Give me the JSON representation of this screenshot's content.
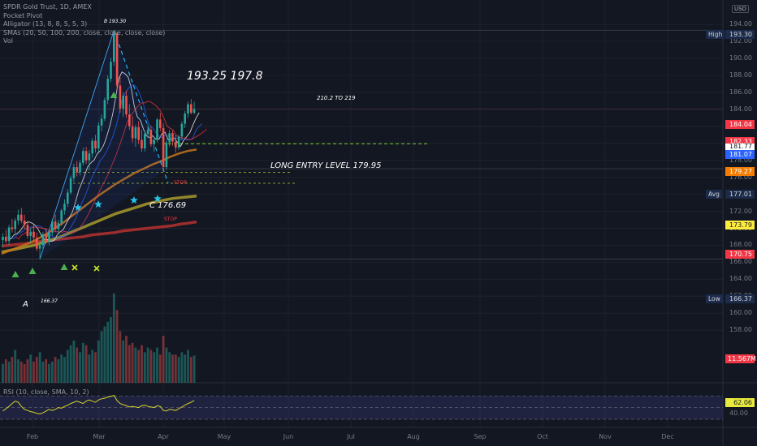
{
  "legend": {
    "title": "SPDR Gold Trust, 1D, AMEX",
    "line2": "Pocket Pivot",
    "line3": "Alligator (13, 8, 8, 5, 5, 3)",
    "line4": "SMAs (20, 50, 100, 200, close, close, close, close)",
    "line5": "Vol"
  },
  "rsi_legend": "RSI (10, close, SMA, 10, 2)",
  "currency": "USD",
  "y_axis": {
    "ticks": [
      "194.00",
      "192.00",
      "190.00",
      "188.00",
      "186.00",
      "184.00",
      "182.00",
      "180.00",
      "178.00",
      "176.00",
      "174.00",
      "172.00",
      "170.00",
      "168.00",
      "166.00",
      "164.00",
      "162.00",
      "160.00",
      "158.00"
    ],
    "rsi_ticks": [
      "40.00",
      "60.00"
    ]
  },
  "x_axis": {
    "ticks": [
      "Feb",
      "Mar",
      "Apr",
      "May",
      "Jun",
      "Jul",
      "Aug",
      "Sep",
      "Oct",
      "Nov",
      "Dec"
    ]
  },
  "price_labels": {
    "high_tag": "High",
    "high": "193.30",
    "last": "184.04",
    "red2": "182.33",
    "white": "181.77",
    "blue": "181.07",
    "orange": "179.27",
    "avg_tag": "Avg",
    "avg": "177.01",
    "yellow": "173.79",
    "red": "170.75",
    "low_tag": "Low",
    "low": "166.37",
    "vol": "11.567M",
    "rsi": "62.06"
  },
  "annotations": {
    "peak": "B 193.30",
    "targets": "193.25  197.8",
    "target2": "210.2 TO 219",
    "entry": "LONG ENTRY LEVEL 179.95",
    "c_point": "C 176.69",
    "a_point": "A",
    "a_value": "166.37",
    "stop": "STOP",
    "stop2": "STOP"
  },
  "colors": {
    "background": "#131722",
    "up": "#26a69a",
    "down": "#ef5350",
    "sma_red": "#b7312f",
    "sma_yellow": "#a89a2c",
    "sma_orange": "#c8761a",
    "rsi_line": "#d5d32a",
    "rsi_band": "#2a2e5a",
    "entry_line": "#7ccd2a",
    "stars": "#27c4e8",
    "triangles": "#4caf50"
  },
  "chart_data": {
    "type": "candlestick",
    "ylim": [
      157.5,
      195.6
    ],
    "levels": {
      "high": 193.3,
      "last": 184.04,
      "avg": 177.01,
      "low": 166.37,
      "entry": 179.95,
      "c": 176.69
    },
    "candles": [
      [
        168.6,
        169.4,
        167.8,
        169.0
      ],
      [
        169.0,
        169.8,
        168.2,
        168.5
      ],
      [
        168.5,
        170.4,
        168.0,
        170.1
      ],
      [
        170.1,
        171.1,
        169.5,
        169.9
      ],
      [
        169.9,
        171.2,
        169.3,
        170.9
      ],
      [
        170.9,
        172.2,
        170.4,
        171.6
      ],
      [
        171.6,
        172.4,
        170.6,
        170.9
      ],
      [
        170.9,
        171.6,
        169.9,
        170.4
      ],
      [
        170.4,
        170.9,
        168.8,
        169.1
      ],
      [
        169.1,
        170.0,
        168.3,
        169.6
      ],
      [
        169.6,
        170.4,
        168.6,
        168.9
      ],
      [
        168.9,
        169.5,
        167.3,
        167.6
      ],
      [
        167.6,
        168.4,
        166.37,
        168.0
      ],
      [
        168.0,
        169.6,
        167.5,
        169.3
      ],
      [
        169.3,
        170.0,
        168.1,
        168.4
      ],
      [
        168.4,
        169.9,
        168.0,
        169.5
      ],
      [
        169.5,
        171.1,
        169.1,
        170.8
      ],
      [
        170.8,
        171.6,
        169.6,
        169.9
      ],
      [
        169.9,
        171.0,
        169.3,
        170.6
      ],
      [
        170.6,
        172.3,
        170.3,
        172.1
      ],
      [
        172.1,
        173.4,
        171.6,
        172.9
      ],
      [
        172.9,
        174.6,
        172.5,
        174.2
      ],
      [
        174.2,
        176.2,
        174.0,
        175.9
      ],
      [
        175.9,
        177.6,
        175.5,
        177.2
      ],
      [
        177.2,
        177.9,
        176.1,
        176.6
      ],
      [
        176.6,
        178.0,
        176.2,
        177.7
      ],
      [
        177.7,
        179.5,
        177.4,
        179.1
      ],
      [
        179.1,
        179.6,
        177.6,
        178.0
      ],
      [
        178.0,
        179.2,
        176.8,
        178.8
      ],
      [
        178.8,
        180.6,
        178.3,
        180.3
      ],
      [
        180.3,
        181.0,
        178.9,
        179.4
      ],
      [
        179.4,
        182.5,
        179.0,
        182.1
      ],
      [
        182.1,
        183.4,
        181.4,
        182.9
      ],
      [
        182.9,
        185.4,
        182.6,
        185.1
      ],
      [
        185.1,
        188.0,
        184.6,
        187.6
      ],
      [
        187.6,
        190.1,
        187.2,
        189.6
      ],
      [
        189.6,
        193.3,
        189.1,
        192.9
      ],
      [
        192.9,
        193.1,
        186.4,
        186.8
      ],
      [
        186.8,
        187.8,
        183.6,
        184.1
      ],
      [
        184.1,
        186.0,
        183.1,
        185.6
      ],
      [
        185.6,
        186.2,
        183.0,
        183.4
      ],
      [
        183.4,
        184.6,
        181.6,
        182.0
      ],
      [
        182.0,
        183.2,
        180.1,
        180.6
      ],
      [
        180.6,
        182.2,
        179.6,
        181.9
      ],
      [
        181.9,
        182.6,
        179.9,
        180.4
      ],
      [
        180.4,
        181.6,
        179.0,
        179.4
      ],
      [
        179.4,
        181.4,
        179.0,
        181.1
      ],
      [
        181.1,
        182.3,
        180.6,
        181.6
      ],
      [
        181.6,
        182.0,
        179.6,
        179.9
      ],
      [
        179.9,
        180.8,
        179.0,
        180.4
      ],
      [
        180.4,
        183.0,
        180.1,
        182.8
      ],
      [
        182.8,
        183.6,
        181.4,
        181.8
      ],
      [
        181.8,
        182.4,
        176.69,
        177.2
      ],
      [
        177.2,
        180.5,
        176.9,
        180.1
      ],
      [
        180.1,
        181.6,
        179.6,
        181.2
      ],
      [
        181.2,
        181.5,
        179.7,
        180.2
      ],
      [
        180.2,
        181.0,
        178.9,
        179.5
      ],
      [
        179.5,
        181.0,
        179.2,
        180.8
      ],
      [
        180.8,
        182.6,
        180.4,
        182.3
      ],
      [
        182.3,
        183.8,
        181.8,
        183.5
      ],
      [
        183.5,
        184.9,
        183.0,
        184.6
      ],
      [
        184.6,
        185.2,
        183.4,
        183.6
      ],
      [
        183.6,
        184.9,
        183.4,
        184.04
      ]
    ],
    "volume_mil": [
      8,
      10,
      9,
      11,
      14,
      10,
      9,
      8,
      10,
      12,
      9,
      11,
      13,
      9,
      10,
      8,
      9,
      11,
      10,
      12,
      11,
      14,
      16,
      18,
      15,
      13,
      17,
      16,
      12,
      14,
      13,
      18,
      22,
      24,
      26,
      28,
      38,
      31,
      22,
      18,
      20,
      16,
      17,
      15,
      14,
      16,
      13,
      15,
      14,
      13,
      15,
      12,
      20,
      15,
      13,
      12,
      12,
      11,
      13,
      12,
      14,
      11,
      11.567
    ],
    "rsi": [
      44,
      48,
      52,
      57,
      61,
      59,
      52,
      47,
      45,
      43,
      42,
      40,
      39,
      41,
      44,
      47,
      45,
      47,
      50,
      49,
      52,
      54,
      57,
      59,
      61,
      59,
      57,
      61,
      63,
      61,
      59,
      63,
      65,
      66,
      68,
      69,
      71,
      62,
      57,
      55,
      53,
      51,
      52,
      51,
      50,
      53,
      54,
      52,
      51,
      50,
      53,
      52,
      45,
      44,
      47,
      46,
      45,
      48,
      51,
      54,
      57,
      59,
      62.06
    ],
    "series": [
      {
        "name": "SMA 200",
        "values": [
          167.9,
          168.0,
          168.1,
          168.2,
          168.4,
          168.5,
          168.6,
          168.7,
          168.8,
          168.9,
          169.0,
          169.2,
          169.3,
          169.4,
          169.5,
          169.7,
          169.8,
          169.9,
          170.0,
          170.1,
          170.2,
          170.3,
          170.5,
          170.6,
          170.75
        ]
      },
      {
        "name": "SMA 100",
        "values": [
          167.2,
          167.4,
          167.6,
          167.8,
          168.0,
          168.3,
          168.6,
          168.9,
          169.3,
          169.7,
          170.1,
          170.5,
          170.9,
          171.3,
          171.7,
          172.0,
          172.3,
          172.6,
          172.9,
          173.1,
          173.3,
          173.5,
          173.6,
          173.7,
          173.79
        ]
      },
      {
        "name": "SMA 50",
        "values": [
          167.0,
          167.4,
          167.8,
          168.2,
          168.7,
          169.3,
          170.0,
          170.7,
          171.5,
          172.3,
          173.1,
          173.9,
          174.6,
          175.3,
          175.9,
          176.5,
          177.0,
          177.5,
          177.9,
          178.4,
          178.8,
          179.1,
          179.27
        ]
      }
    ]
  }
}
